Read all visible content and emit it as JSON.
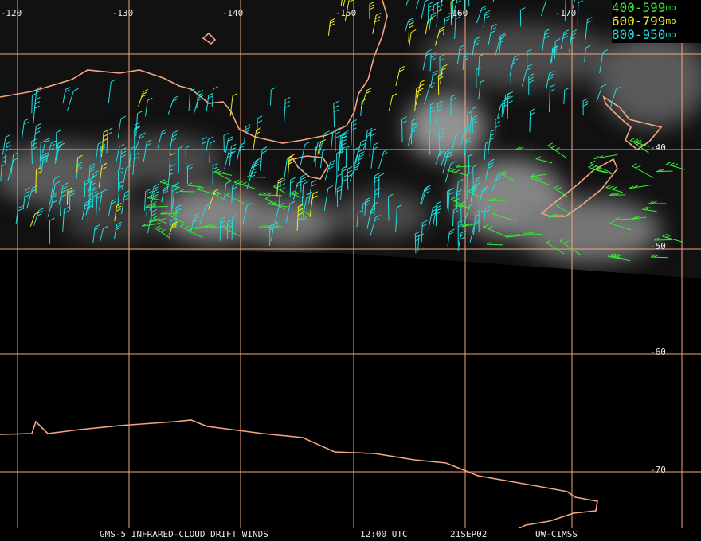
{
  "map": {
    "lon_labels": [
      "-120",
      "-130",
      "-140",
      "-150",
      "-160",
      "-170"
    ],
    "lat_labels": [
      "-40",
      "-50",
      "-60",
      "-70"
    ],
    "grid_color": "#f4a582",
    "coast_color": "#f4a582",
    "legend": [
      {
        "range": "400-599",
        "unit": "mb",
        "color": "#33ee33"
      },
      {
        "range": "600-799",
        "unit": "mb",
        "color": "#eeee22"
      },
      {
        "range": "800-950",
        "unit": "mb",
        "color": "#22dddd"
      }
    ],
    "footer": {
      "product": "GMS-5 INFRARED-CLOUD DRIFT WINDS",
      "time": "12:00 UTC",
      "date": "21SEP02",
      "source": "UW-CIMSS"
    }
  }
}
